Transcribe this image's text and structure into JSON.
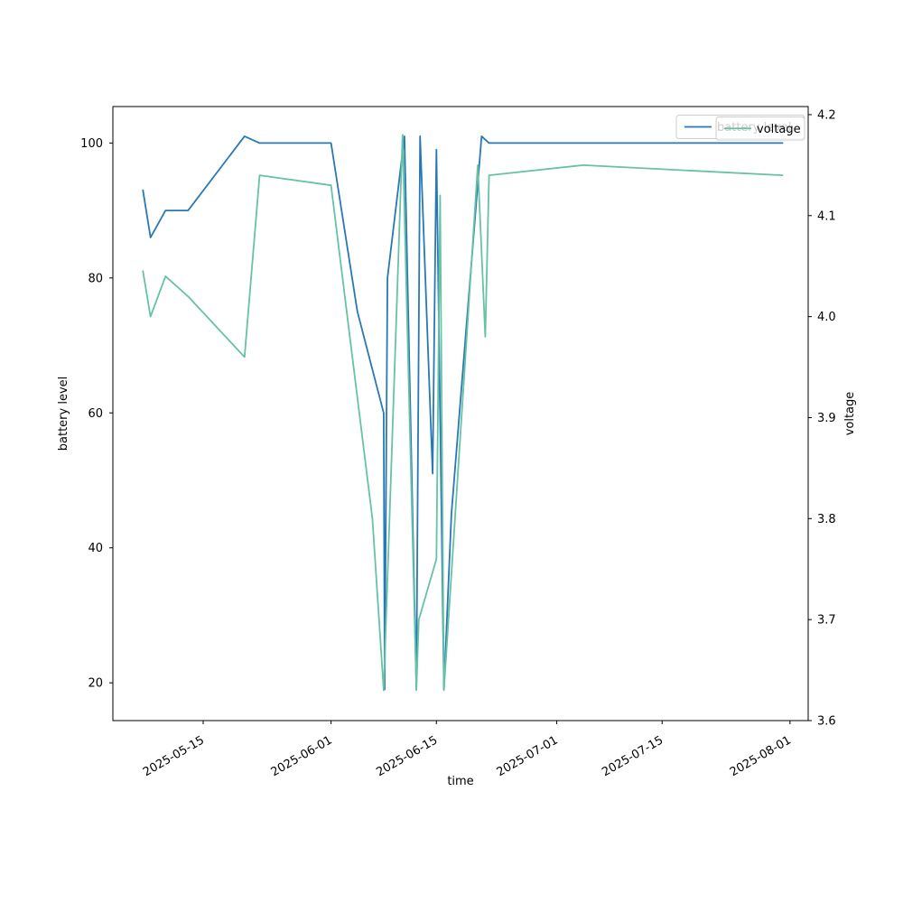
{
  "figure": {
    "background": "#ffffff"
  },
  "chart_data": {
    "type": "line",
    "title": "",
    "xlabel": "time",
    "ylabel_left": "battery level",
    "ylabel_right": "voltage",
    "grid": false,
    "legend_position": "upper right",
    "x_tick_labels": [
      "2025-05-15",
      "2025-06-01",
      "2025-06-15",
      "2025-07-01",
      "2025-07-15",
      "2025-08-01"
    ],
    "y_left_ticks": [
      20,
      40,
      60,
      80,
      100
    ],
    "y_right_ticks": [
      3.6,
      3.7,
      3.8,
      3.9,
      4.0,
      4.1,
      4.2
    ],
    "xlim": [
      "2025-05-03T00:00",
      "2025-08-03T10:00"
    ],
    "ylim_left": [
      14.4,
      105.4
    ],
    "ylim_right": [
      3.6,
      4.208
    ],
    "series": [
      {
        "name": "battery level",
        "axis": "left",
        "color": "#2878b5",
        "points": [
          [
            "2025-05-07",
            93
          ],
          [
            "2025-05-08",
            86
          ],
          [
            "2025-05-10",
            90
          ],
          [
            "2025-05-13",
            90
          ],
          [
            "2025-05-20T12:00",
            101
          ],
          [
            "2025-05-22T12:00",
            100
          ],
          [
            "2025-06-01",
            100
          ],
          [
            "2025-06-04T12:00",
            75
          ],
          [
            "2025-06-08",
            60
          ],
          [
            "2025-06-08T03:00",
            19
          ],
          [
            "2025-06-08T12:00",
            80
          ],
          [
            "2025-06-10T18:00",
            101
          ],
          [
            "2025-06-12T08:00",
            19
          ],
          [
            "2025-06-12T20:00",
            101
          ],
          [
            "2025-06-14T12:00",
            51
          ],
          [
            "2025-06-15",
            99
          ],
          [
            "2025-06-16",
            19
          ],
          [
            "2025-06-17",
            45
          ],
          [
            "2025-06-21",
            101
          ],
          [
            "2025-06-22",
            100
          ],
          [
            "2025-07-04",
            100
          ],
          [
            "2025-07-31",
            100
          ]
        ]
      },
      {
        "name": "voltage",
        "axis": "right",
        "color": "#66c2a5",
        "points": [
          [
            "2025-05-07",
            4.045
          ],
          [
            "2025-05-08",
            4.0
          ],
          [
            "2025-05-10",
            4.04
          ],
          [
            "2025-05-13",
            4.02
          ],
          [
            "2025-05-20T12:00",
            3.96
          ],
          [
            "2025-05-22T12:00",
            4.14
          ],
          [
            "2025-06-01",
            4.13
          ],
          [
            "2025-06-06T12:00",
            3.8
          ],
          [
            "2025-06-08",
            3.63
          ],
          [
            "2025-06-10T12:00",
            4.18
          ],
          [
            "2025-06-12T08:00",
            3.63
          ],
          [
            "2025-06-12T16:00",
            3.7
          ],
          [
            "2025-06-15",
            3.76
          ],
          [
            "2025-06-15T12:00",
            4.12
          ],
          [
            "2025-06-16",
            3.63
          ],
          [
            "2025-06-20T12:00",
            4.15
          ],
          [
            "2025-06-21T12:00",
            3.98
          ],
          [
            "2025-06-22",
            4.14
          ],
          [
            "2025-07-04T12:00",
            4.15
          ],
          [
            "2025-07-31",
            4.14
          ]
        ]
      }
    ],
    "legends": [
      {
        "label": "battery level",
        "color": "#2878b5"
      },
      {
        "label": "voltage",
        "color": "#66c2a5"
      }
    ]
  }
}
